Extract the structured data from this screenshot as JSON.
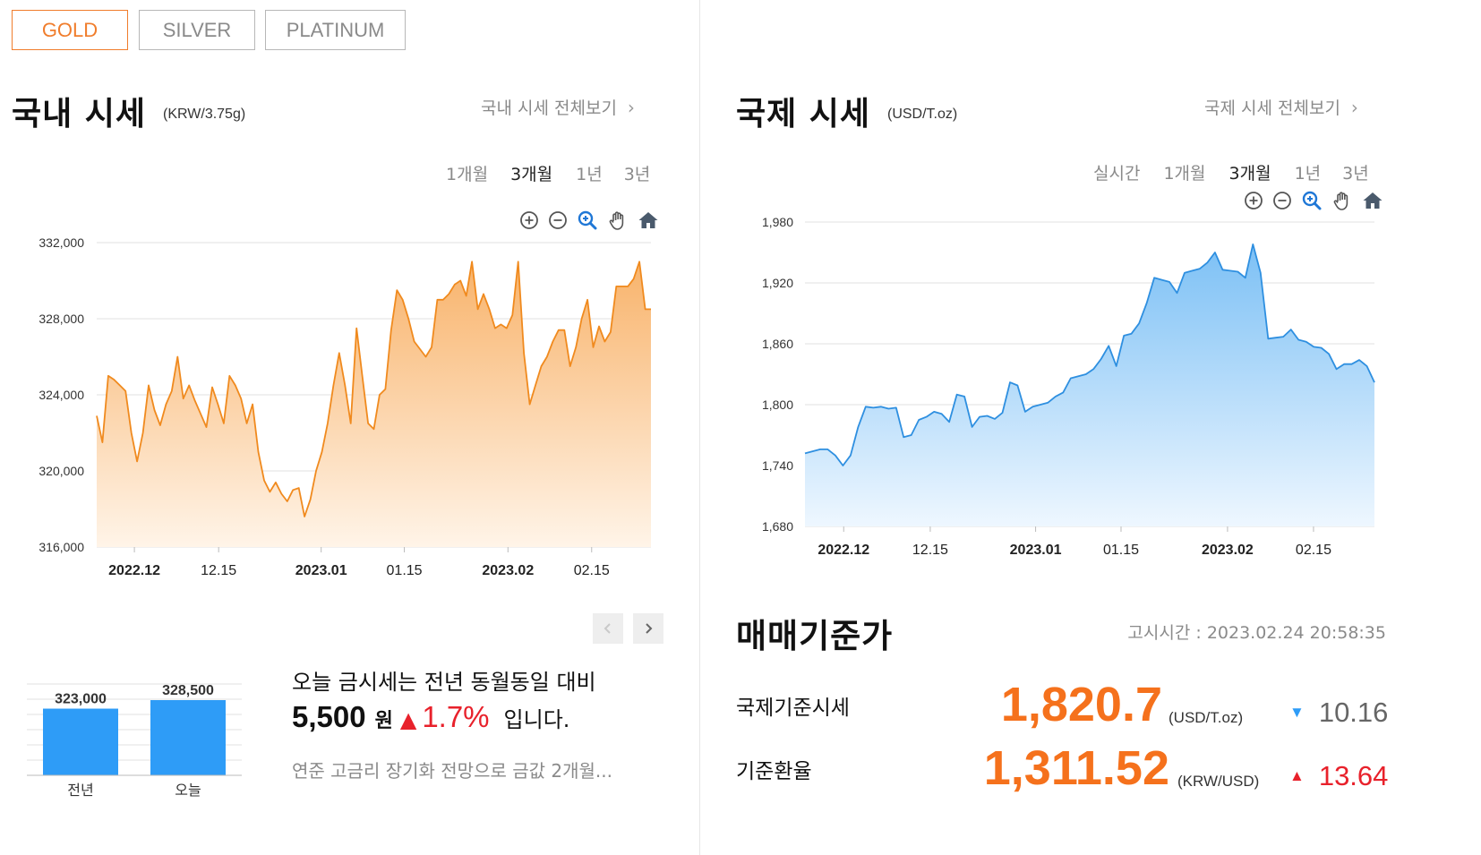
{
  "metal_tabs": [
    {
      "label": "GOLD",
      "active": true
    },
    {
      "label": "SILVER",
      "active": false
    },
    {
      "label": "PLATINUM",
      "active": false
    }
  ],
  "domestic": {
    "title": "국내 시세",
    "unit": "(KRW/3.75g)",
    "view_all": "국내 시세 전체보기",
    "periods": [
      "1개월",
      "3개월",
      "1년",
      "3년"
    ],
    "selected_period": "3개월",
    "tools": [
      "zoom-in-icon",
      "zoom-out-icon",
      "magnifier-icon",
      "pan-hand-icon",
      "home-icon"
    ],
    "colors": {
      "line": "#f08a1e",
      "fill_top": "#f8b36b",
      "fill_bottom": "#fff4e8"
    }
  },
  "international": {
    "title": "국제 시세",
    "unit": "(USD/T.oz)",
    "view_all": "국제 시세 전체보기",
    "periods": [
      "실시간",
      "1개월",
      "3개월",
      "1년",
      "3년"
    ],
    "selected_period": "3개월",
    "tools": [
      "zoom-in-icon",
      "zoom-out-icon",
      "magnifier-icon",
      "pan-hand-icon",
      "home-icon"
    ],
    "colors": {
      "line": "#2e8fe0",
      "fill_top": "#7cc0f5",
      "fill_bottom": "#eef7ff"
    }
  },
  "chart_data": [
    {
      "type": "area",
      "title": "",
      "xlabel": "",
      "ylabel": "",
      "ylim": [
        316000,
        332000
      ],
      "yticks": [
        "316,000",
        "320,000",
        "324,000",
        "328,000",
        "332,000"
      ],
      "ytick_values": [
        316000,
        320000,
        324000,
        328000,
        332000
      ],
      "xticks": [
        {
          "label": "2022.12",
          "bold": true
        },
        {
          "label": "12.15",
          "bold": false
        },
        {
          "label": "2023.01",
          "bold": true
        },
        {
          "label": "01.15",
          "bold": false
        },
        {
          "label": "2023.02",
          "bold": true
        },
        {
          "label": "02.15",
          "bold": false
        }
      ],
      "x_start": "2022.11.25",
      "x_end": "2023.02.24",
      "grid": true,
      "series": [
        {
          "values": [
            322900,
            321500,
            325000,
            324800,
            324500,
            324200,
            322000,
            320500,
            322000,
            324500,
            323200,
            322400,
            323500,
            324200,
            326000,
            323800,
            324500,
            323700,
            323000,
            322300,
            324400,
            323500,
            322500,
            325000,
            324500,
            323800,
            322500,
            323500,
            321000,
            319500,
            318900,
            319400,
            318800,
            318400,
            319000,
            319100,
            317600,
            318500,
            320000,
            321000,
            322500,
            324500,
            326200,
            324500,
            322500,
            327500,
            325000,
            322500,
            322200,
            324000,
            324300,
            327400,
            329500,
            329000,
            328000,
            326800,
            326400,
            326000,
            326500,
            329000,
            329000,
            329300,
            329800,
            330000,
            329200,
            331000,
            328500,
            329300,
            328500,
            327500,
            327700,
            327500,
            328200,
            331000,
            326200,
            323500,
            324500,
            325500,
            326000,
            326800,
            327400,
            327400,
            325500,
            326500,
            328000,
            329000,
            326500,
            327600,
            326800,
            327300,
            329700,
            329700,
            329700,
            330100,
            331000,
            328500,
            328500
          ]
        }
      ]
    },
    {
      "type": "area",
      "title": "",
      "xlabel": "",
      "ylabel": "",
      "ylim": [
        1680,
        1980
      ],
      "yticks": [
        "1,680",
        "1,740",
        "1,800",
        "1,860",
        "1,920",
        "1,980"
      ],
      "ytick_values": [
        1680,
        1740,
        1800,
        1860,
        1920,
        1980
      ],
      "xticks": [
        {
          "label": "2022.12",
          "bold": true
        },
        {
          "label": "12.15",
          "bold": false
        },
        {
          "label": "2023.01",
          "bold": true
        },
        {
          "label": "01.15",
          "bold": false
        },
        {
          "label": "2023.02",
          "bold": true
        },
        {
          "label": "02.15",
          "bold": false
        }
      ],
      "x_start": "2022.11.25",
      "x_end": "2023.02.24",
      "grid": true,
      "series": [
        {
          "values": [
            1752,
            1754,
            1756,
            1756,
            1750,
            1740,
            1750,
            1778,
            1798,
            1797,
            1798,
            1796,
            1797,
            1768,
            1770,
            1785,
            1788,
            1793,
            1791,
            1783,
            1810,
            1808,
            1778,
            1788,
            1789,
            1786,
            1792,
            1822,
            1819,
            1793,
            1798,
            1800,
            1802,
            1808,
            1812,
            1826,
            1828,
            1830,
            1835,
            1845,
            1858,
            1838,
            1868,
            1870,
            1880,
            1900,
            1925,
            1923,
            1921,
            1910,
            1930,
            1932,
            1934,
            1940,
            1950,
            1933,
            1932,
            1931,
            1925,
            1958,
            1930,
            1865,
            1866,
            1867,
            1874,
            1864,
            1862,
            1857,
            1856,
            1850,
            1835,
            1840,
            1840,
            1844,
            1838,
            1822
          ]
        }
      ]
    }
  ],
  "mini_bars": {
    "categories": [
      "전년",
      "오늘"
    ],
    "values": [
      323000,
      328500
    ],
    "labels": [
      "323,000",
      "328,500"
    ],
    "color": "#2e9cf7"
  },
  "summary": {
    "line1": "오늘 금시세는 전년 동월동일 대비",
    "diff_amount": "5,500",
    "won": "원",
    "arrow": "▲",
    "diff_pct": "1.7%",
    "tail": "입니다.",
    "news": "연준 고금리 장기화 전망으로 금값 2개월..."
  },
  "standard_price": {
    "title": "매매기준가",
    "notice_label": "고시시간 :",
    "notice_time": "2023.02.24 20:58:35",
    "rows": [
      {
        "label": "국제기준시세",
        "value": "1,820.7",
        "unit": "(USD/T.oz)",
        "arrow": "▼",
        "change": "10.16",
        "direction": "down"
      },
      {
        "label": "기준환율",
        "value": "1,311.52",
        "unit": "(KRW/USD)",
        "arrow": "▲",
        "change": "13.64",
        "direction": "up"
      }
    ]
  },
  "colors": {
    "accent": "#f07d2c",
    "up": "#e8212b",
    "down": "#2e9cf7",
    "value_orange": "#f5711c"
  }
}
